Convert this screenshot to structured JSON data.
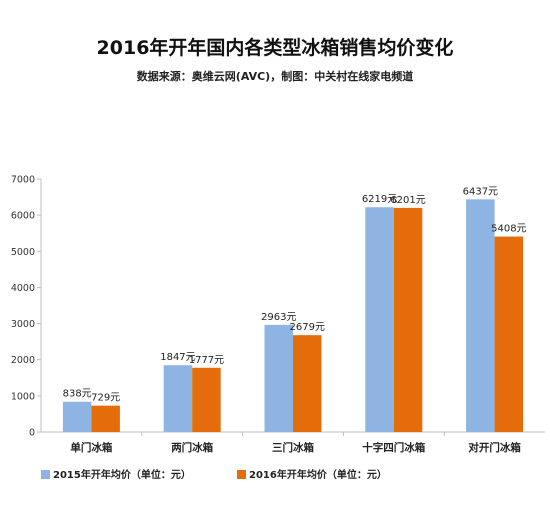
{
  "chart_data": {
    "type": "bar",
    "title": "2016年开年国内各类型冰箱销售均价变化",
    "subtitle": "数据来源：奥维云网(AVC)，制图：中关村在线家电频道",
    "categories": [
      "单门冰箱",
      "两门冰箱",
      "三门冰箱",
      "十字四门冰箱",
      "对开门冰箱"
    ],
    "series": [
      {
        "name": "2015年开年均价（单位：元）",
        "color": "#8db4e2",
        "values": [
          838,
          1847,
          2963,
          6219,
          6437
        ],
        "labels": [
          "838元",
          "1847元",
          "2963元",
          "6219元",
          "6437元"
        ]
      },
      {
        "name": "2016年开年均价（单位：元）",
        "color": "#e46c0a",
        "values": [
          729,
          1777,
          2679,
          6201,
          5408
        ],
        "labels": [
          "729元",
          "1777元",
          "2679元",
          "6201元",
          "5408元"
        ]
      }
    ],
    "ylim": [
      0,
      7000
    ],
    "yticks": [
      0,
      1000,
      2000,
      3000,
      4000,
      5000,
      6000,
      7000
    ],
    "grid": false,
    "legend": "bottom-left"
  }
}
